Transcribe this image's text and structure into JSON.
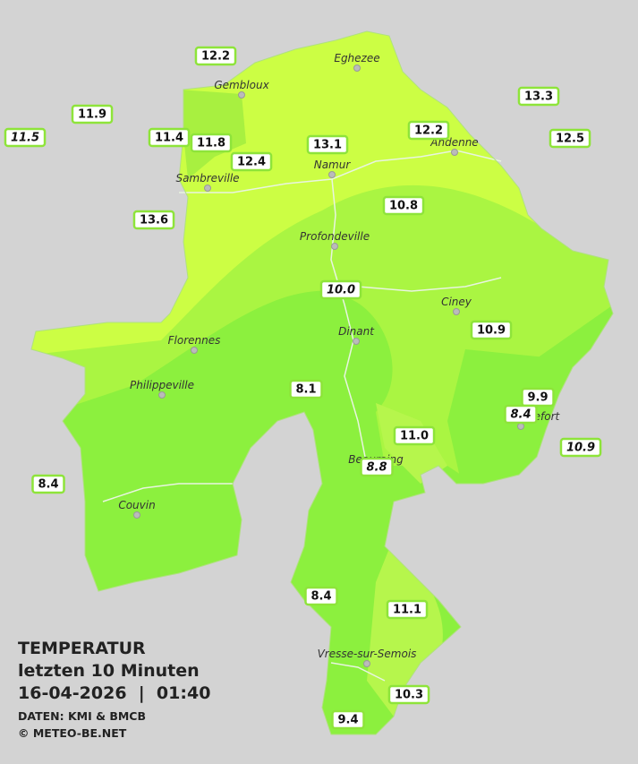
{
  "legend": {
    "title": "TEMPERATUR",
    "subtitle": "letzten 10 Minuten",
    "timestamp": "16-04-2026  |  01:40",
    "source": "DATEN: KMI & BMCB",
    "copyright": "© METEO-BE.NET"
  },
  "cities": [
    "Eghezee",
    "Gembloux",
    "Namur",
    "Andenne",
    "Sambreville",
    "Profondeville",
    "Ciney",
    "Dinant",
    "Florennes",
    "Philippeville",
    "Rochefort",
    "Beauraing",
    "Couvin",
    "Vresse-sur-Semois"
  ],
  "stations": [
    {
      "value": "12.2",
      "italic": false
    },
    {
      "value": "11.9",
      "italic": false
    },
    {
      "value": "11.5",
      "italic": true
    },
    {
      "value": "11.4",
      "italic": false
    },
    {
      "value": "11.8",
      "italic": false
    },
    {
      "value": "12.4",
      "italic": false
    },
    {
      "value": "13.1",
      "italic": false
    },
    {
      "value": "12.2",
      "italic": false
    },
    {
      "value": "13.3",
      "italic": false
    },
    {
      "value": "12.5",
      "italic": false
    },
    {
      "value": "10.8",
      "italic": false
    },
    {
      "value": "13.6",
      "italic": false
    },
    {
      "value": "10.0",
      "italic": true
    },
    {
      "value": "10.9",
      "italic": false
    },
    {
      "value": "8.1",
      "italic": false
    },
    {
      "value": "9.9",
      "italic": false
    },
    {
      "value": "8.4",
      "italic": true
    },
    {
      "value": "11.0",
      "italic": false
    },
    {
      "value": "10.9",
      "italic": true
    },
    {
      "value": "8.8",
      "italic": true
    },
    {
      "value": "8.4",
      "italic": false
    },
    {
      "value": "8.4",
      "italic": false
    },
    {
      "value": "11.1",
      "italic": false
    },
    {
      "value": "10.3",
      "italic": false
    },
    {
      "value": "9.4",
      "italic": false
    }
  ]
}
